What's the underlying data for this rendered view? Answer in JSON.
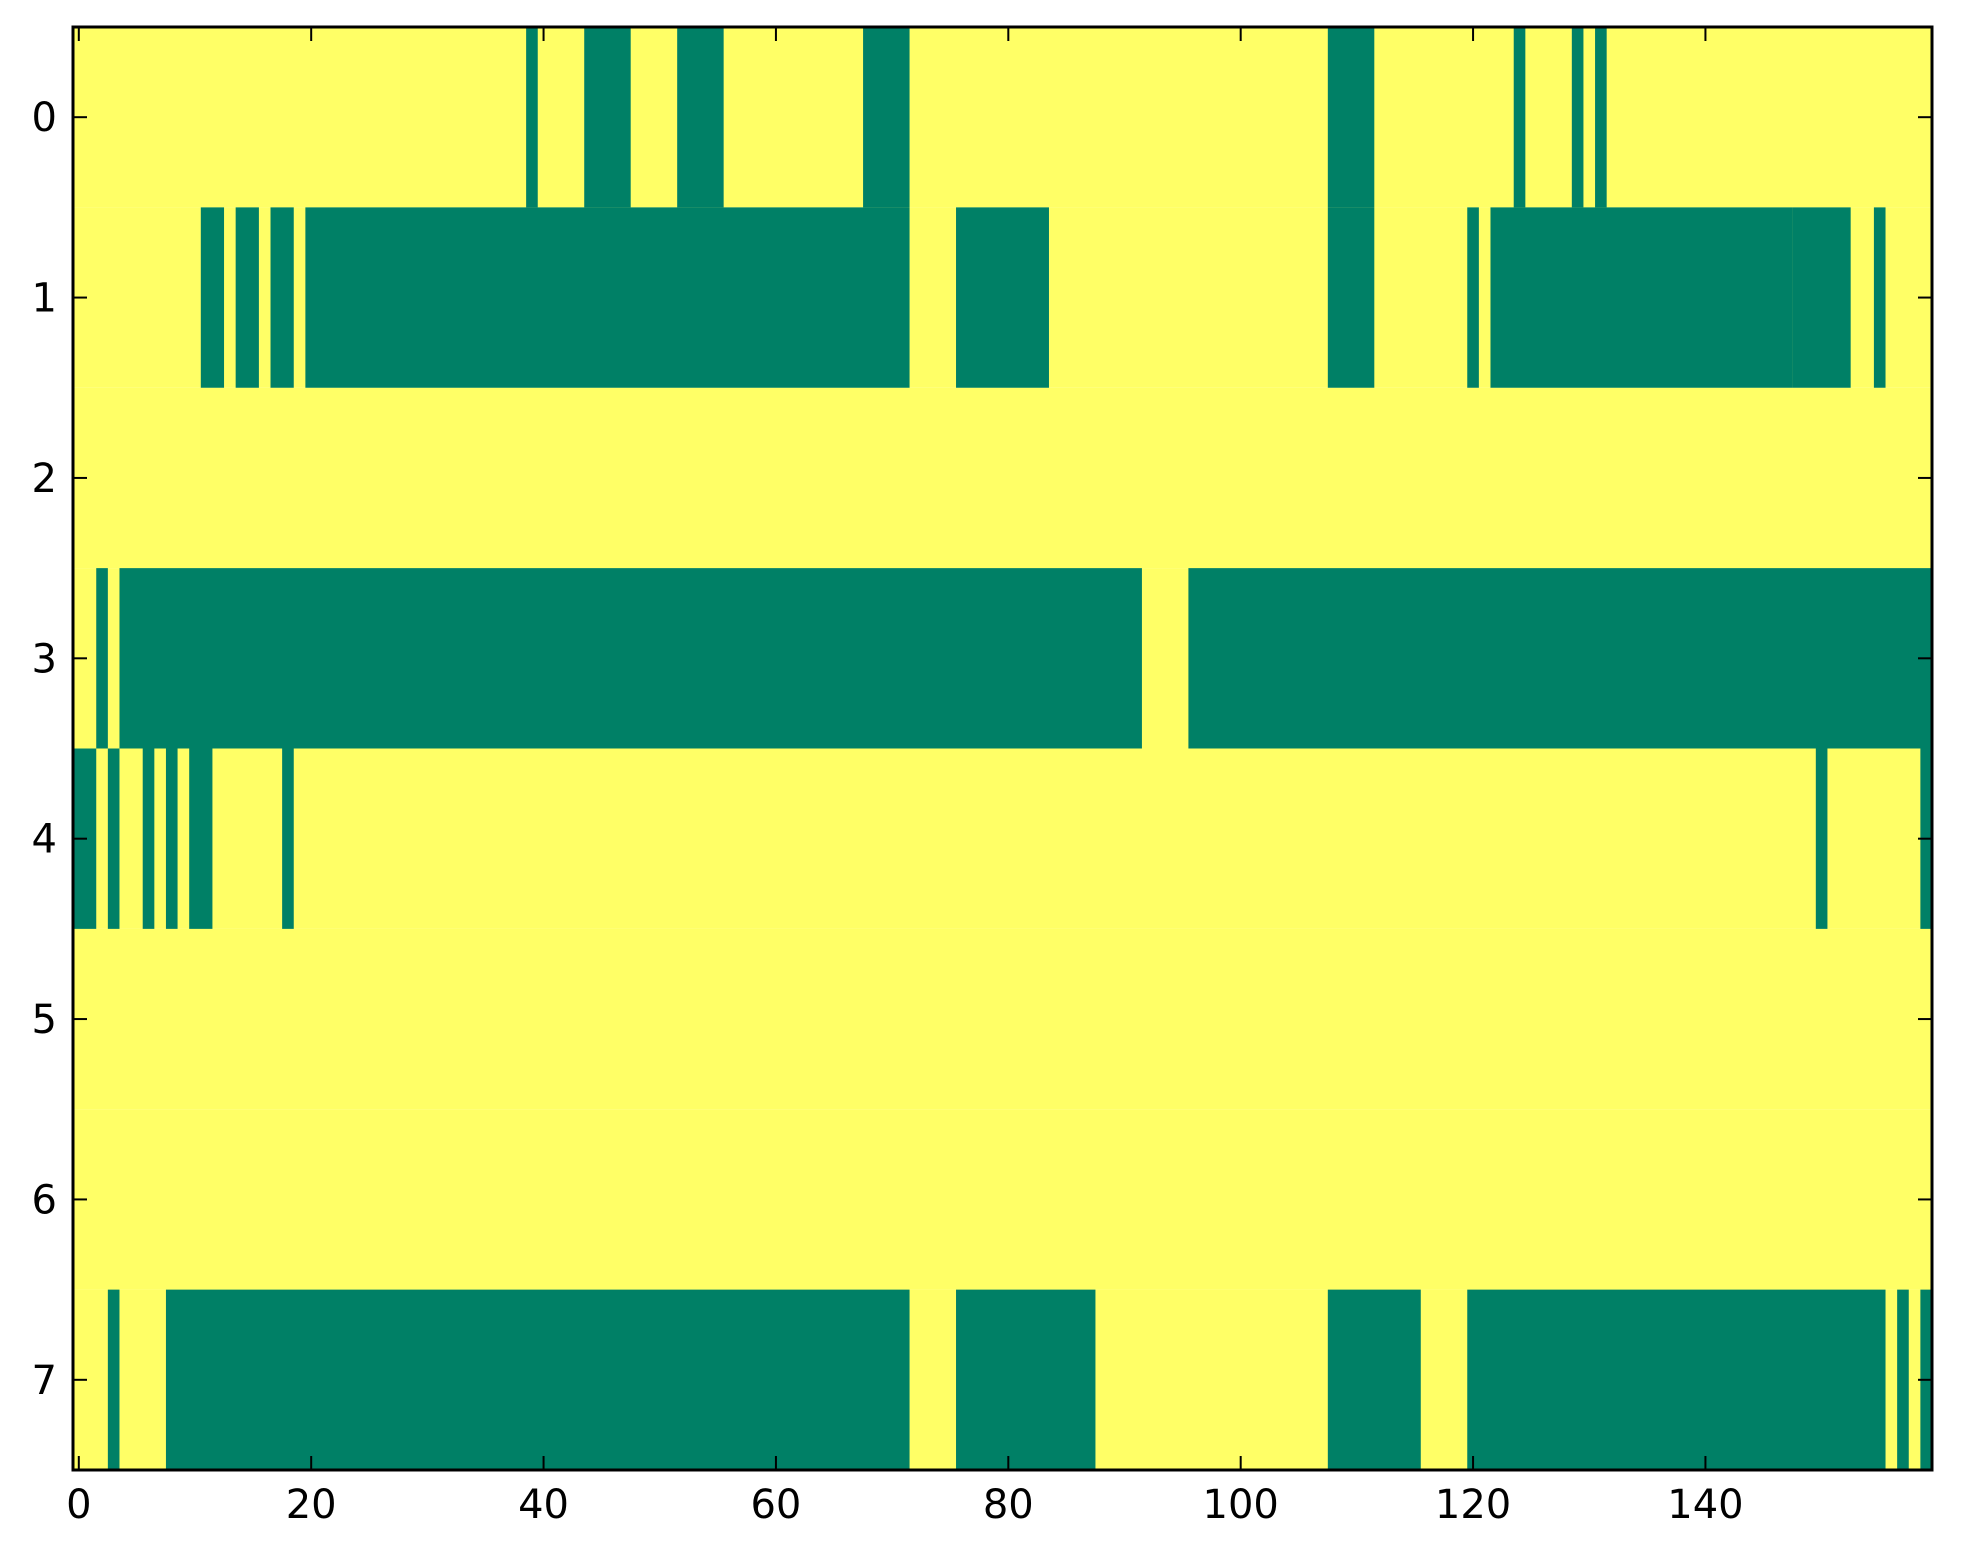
{
  "chart_data": {
    "type": "heatmap",
    "title": "",
    "xlabel": "",
    "ylabel": "",
    "n_rows": 8,
    "n_cols": 160,
    "xlim": [
      -0.5,
      159.5
    ],
    "ylim": [
      7.5,
      -0.5
    ],
    "grid": false,
    "legend": "none",
    "xticks": [
      0,
      20,
      40,
      60,
      80,
      100,
      120,
      140
    ],
    "xtick_labels": [
      "0",
      "20",
      "40",
      "60",
      "80",
      "100",
      "120",
      "140"
    ],
    "yticks": [
      0,
      1,
      2,
      3,
      4,
      5,
      6,
      7
    ],
    "ytick_labels": [
      "0",
      "1",
      "2",
      "3",
      "4",
      "5",
      "6",
      "7"
    ],
    "colors": {
      "0": "#ffff66",
      "1": "#008066"
    },
    "rows": [
      {
        "row": 0,
        "active_ranges": [
          [
            39,
            39
          ],
          [
            44,
            47
          ],
          [
            52,
            55
          ],
          [
            68,
            71
          ],
          [
            108,
            111
          ],
          [
            124,
            124
          ],
          [
            129,
            129
          ],
          [
            131,
            131
          ]
        ]
      },
      {
        "row": 1,
        "active_ranges": [
          [
            11,
            12
          ],
          [
            14,
            15
          ],
          [
            17,
            18
          ],
          [
            20,
            71
          ],
          [
            76,
            83
          ],
          [
            108,
            111
          ],
          [
            120,
            120
          ],
          [
            122,
            147
          ],
          [
            148,
            152
          ],
          [
            155,
            155
          ]
        ]
      },
      {
        "row": 2,
        "active_ranges": []
      },
      {
        "row": 3,
        "active_ranges": [
          [
            2,
            2
          ],
          [
            4,
            91
          ],
          [
            96,
            159
          ]
        ]
      },
      {
        "row": 4,
        "active_ranges": [
          [
            0,
            1
          ],
          [
            3,
            3
          ],
          [
            6,
            6
          ],
          [
            8,
            8
          ],
          [
            10,
            11
          ],
          [
            18,
            18
          ],
          [
            150,
            150
          ],
          [
            159,
            159
          ]
        ]
      },
      {
        "row": 5,
        "active_ranges": []
      },
      {
        "row": 6,
        "active_ranges": []
      },
      {
        "row": 7,
        "active_ranges": [
          [
            3,
            3
          ],
          [
            8,
            71
          ],
          [
            76,
            87
          ],
          [
            108,
            115
          ],
          [
            120,
            155
          ],
          [
            157,
            157
          ],
          [
            159,
            159
          ]
        ]
      }
    ]
  }
}
